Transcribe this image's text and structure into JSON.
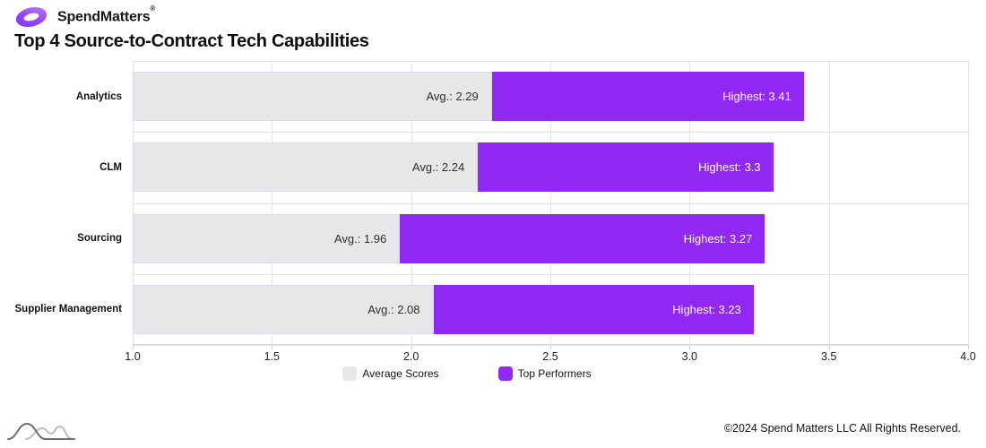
{
  "brand": {
    "logo_text": "SpendMatters",
    "registered_mark": "®"
  },
  "title": "Top 4 Source-to-Contract Tech Capabilities",
  "colors": {
    "average": "#e7e7e7",
    "top_performer": "#9228f3",
    "grid": "#e4e4e4",
    "logo_purple_light": "#b06bfa",
    "logo_purple_dark": "#7b2ff0"
  },
  "legend": [
    {
      "label": "Average Scores",
      "color_key": "average"
    },
    {
      "label": "Top Performers",
      "color_key": "top_performer"
    }
  ],
  "chart_data": {
    "type": "bar",
    "orientation": "horizontal",
    "title": "Top 4 Source-to-Contract Tech Capabilities",
    "categories": [
      "Analytics",
      "CLM",
      "Sourcing",
      "Supplier Management"
    ],
    "series": [
      {
        "name": "Average Scores",
        "values": [
          2.29,
          2.24,
          1.96,
          2.08
        ],
        "labels": [
          "Avg.: 2.29",
          "Avg.: 2.24",
          "Avg.: 1.96",
          "Avg.: 2.08"
        ]
      },
      {
        "name": "Top Performers",
        "values": [
          3.41,
          3.3,
          3.27,
          3.23
        ],
        "labels": [
          "Highest: 3.41",
          "Highest: 3.3",
          "Highest: 3.27",
          "Highest: 3.23"
        ]
      }
    ],
    "xlim": [
      1.0,
      4.0
    ],
    "xticks": [
      "1.0",
      "1.5",
      "2.0",
      "2.5",
      "3.0",
      "3.5",
      "4.0"
    ],
    "grid": true,
    "legend_position": "bottom"
  },
  "icons": {
    "logo": "spendmatters-swirl-icon",
    "footer": "distribution-curves-icon"
  },
  "footer": {
    "copyright": "©2024 Spend Matters LLC All Rights Reserved."
  }
}
